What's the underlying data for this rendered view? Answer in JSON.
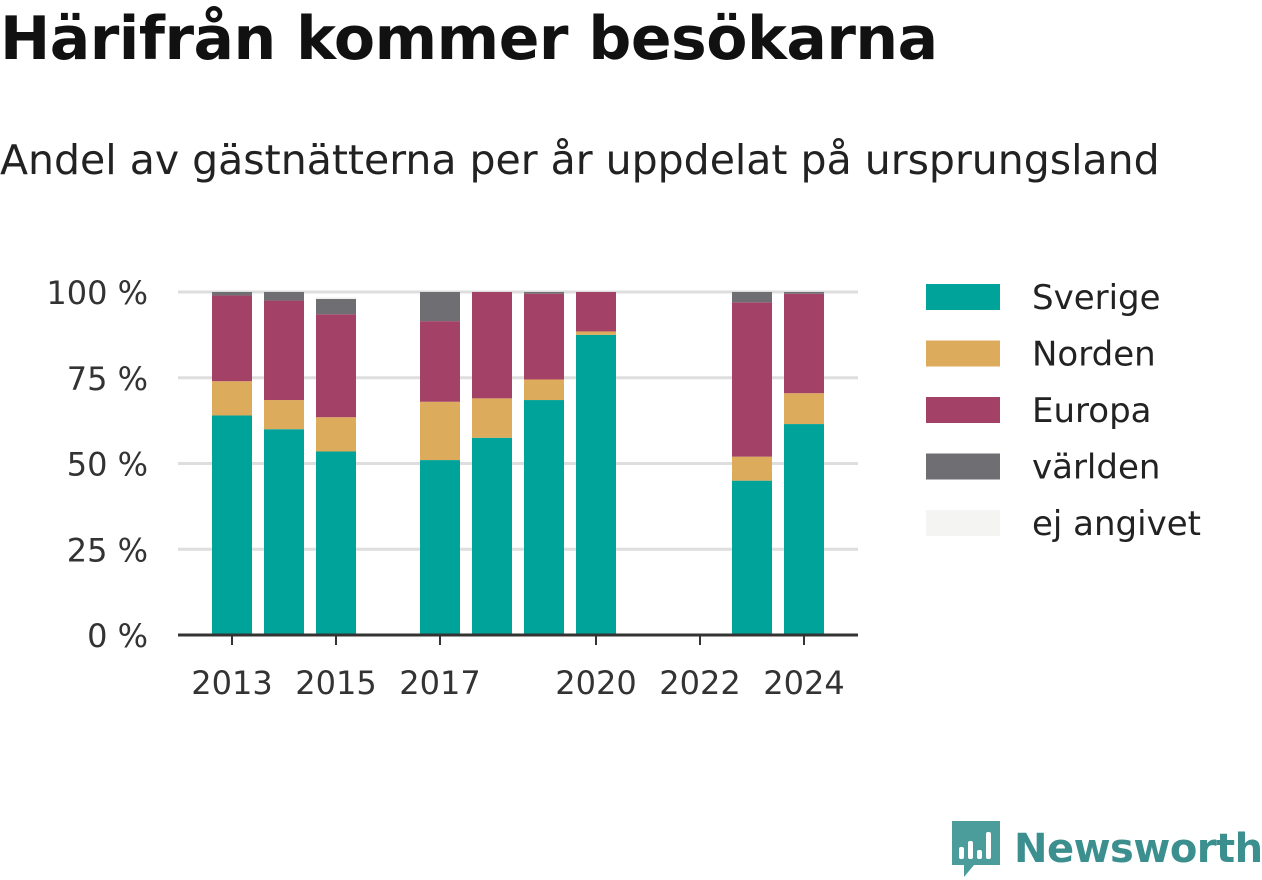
{
  "header": {
    "title": "Härifrån kommer besökarna",
    "subtitle": "Andel av gästnätterna per år uppdelat på ursprungsland"
  },
  "logo": {
    "text": "Newsworthy",
    "icon": "newsworthy-chart-logo-icon"
  },
  "chart_data": {
    "type": "bar",
    "stacked": true,
    "x": [
      2013,
      2014,
      2015,
      2016,
      2017,
      2018,
      2019,
      2020,
      2021,
      2022,
      2023,
      2024
    ],
    "x_tick_labels": [
      "2013",
      "2015",
      "2017",
      "2020",
      "2022",
      "2024"
    ],
    "y_ticks": [
      0,
      25,
      50,
      75,
      100
    ],
    "y_tick_labels": [
      "0 %",
      "25 %",
      "50 %",
      "75 %",
      "100 %"
    ],
    "ylim": [
      0,
      100
    ],
    "grid": true,
    "legend_position": "right",
    "series": [
      {
        "name": "Sverige",
        "color": "#00a39a",
        "values": [
          64,
          60,
          53.5,
          null,
          51,
          57.5,
          68.5,
          87.5,
          null,
          null,
          45,
          61.5
        ]
      },
      {
        "name": "Norden",
        "color": "#dcab5c",
        "values": [
          10,
          8.5,
          10,
          null,
          17,
          11.5,
          6,
          1,
          null,
          null,
          7,
          9
        ]
      },
      {
        "name": "Europa",
        "color": "#a34166",
        "values": [
          25,
          29,
          30,
          null,
          23.5,
          31,
          25,
          11.5,
          null,
          null,
          45,
          29
        ]
      },
      {
        "name": "världen",
        "color": "#6e6e73",
        "values": [
          1,
          2.5,
          4.5,
          null,
          8.5,
          0,
          0.5,
          0,
          null,
          null,
          3,
          0.5
        ]
      },
      {
        "name": "ej angivet",
        "color": "#f4f4f2",
        "values": [
          0,
          0,
          0.5,
          null,
          0,
          0,
          0,
          0,
          null,
          null,
          0,
          0
        ]
      }
    ]
  }
}
